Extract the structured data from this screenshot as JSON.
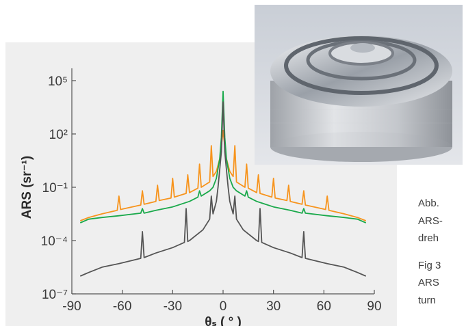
{
  "chart_data": {
    "type": "line",
    "xlabel": "θₛ ( ° )",
    "ylabel": "ARS (sr⁻¹)",
    "xlim": [
      -90,
      90
    ],
    "xticks": [
      -90,
      -60,
      -30,
      0,
      30,
      60,
      90
    ],
    "ylim": [
      1e-07,
      100000
    ],
    "yticks": [
      {
        "value": 1e-07,
        "label": "10⁻⁷"
      },
      {
        "value": 0.0001,
        "label": "10⁻⁴"
      },
      {
        "value": 0.1,
        "label": "10⁻¹"
      },
      {
        "value": 100,
        "label": "10²"
      },
      {
        "value": 100000,
        "label": "10⁵"
      }
    ],
    "log_y": true,
    "series": [
      {
        "color": "#f7941d",
        "x": [
          -85,
          -80,
          -72,
          -63,
          -62,
          -61,
          -49,
          -48,
          -47,
          -40,
          -39,
          -38,
          -31,
          -30,
          -29,
          -22,
          -21,
          -20,
          -15,
          -14,
          -13,
          -8,
          -7,
          -6,
          -4,
          -2,
          -1,
          0,
          1,
          2,
          4,
          6,
          7,
          8,
          13,
          14,
          15,
          20,
          21,
          22,
          29,
          30,
          31,
          38,
          39,
          40,
          47,
          48,
          49,
          61,
          62,
          63,
          72,
          80,
          85
        ],
        "values": [
          0.0013,
          0.002,
          0.0032,
          0.005,
          0.032,
          0.0056,
          0.01,
          0.063,
          0.011,
          0.016,
          0.13,
          0.018,
          0.025,
          0.32,
          0.028,
          0.045,
          0.5,
          0.05,
          0.089,
          2,
          0.1,
          0.2,
          22,
          0.4,
          0.79,
          4,
          20,
          158,
          20,
          4,
          0.79,
          0.4,
          22,
          0.2,
          0.1,
          2,
          0.089,
          0.05,
          0.5,
          0.045,
          0.028,
          0.32,
          0.025,
          0.018,
          0.13,
          0.016,
          0.011,
          0.063,
          0.01,
          0.0056,
          0.032,
          0.005,
          0.0032,
          0.002,
          0.0013
        ]
      },
      {
        "color": "#1aa94b",
        "x": [
          -85,
          -80,
          -72,
          -62,
          -49,
          -48,
          -47,
          -40,
          -30,
          -20,
          -15,
          -14,
          -13,
          -8,
          -6,
          -4,
          -2,
          -1,
          0,
          1,
          2,
          4,
          6,
          8,
          13,
          14,
          15,
          20,
          30,
          40,
          47,
          48,
          49,
          62,
          72,
          80,
          85
        ],
        "values": [
          0.001,
          0.0016,
          0.002,
          0.0025,
          0.0035,
          0.0063,
          0.0035,
          0.005,
          0.0079,
          0.016,
          0.028,
          0.063,
          0.032,
          0.063,
          0.1,
          0.32,
          4,
          63,
          25000,
          63,
          4,
          0.32,
          0.1,
          0.063,
          0.032,
          0.063,
          0.028,
          0.016,
          0.0079,
          0.005,
          0.0035,
          0.0063,
          0.0035,
          0.0025,
          0.002,
          0.0016,
          0.001
        ]
      },
      {
        "color": "#555555",
        "x": [
          -85,
          -80,
          -72,
          -62,
          -49,
          -48,
          -47,
          -40,
          -30,
          -23,
          -22,
          -21,
          -20,
          -12,
          -8,
          -7,
          -6,
          -4,
          -3,
          -2,
          -1,
          0,
          1,
          2,
          3,
          4,
          6,
          7,
          8,
          12,
          20,
          21,
          22,
          23,
          30,
          40,
          47,
          48,
          49,
          62,
          72,
          80,
          85
        ],
        "values": [
          1e-06,
          1.6e-06,
          3.2e-06,
          5e-06,
          1e-05,
          0.00032,
          1.1e-05,
          2e-05,
          4e-05,
          7.9e-05,
          0.0063,
          8.9e-05,
          0.0001,
          0.0004,
          0.0016,
          0.032,
          0.0032,
          0.016,
          0.1,
          1,
          10,
          6300,
          10,
          1,
          0.1,
          0.016,
          0.0032,
          0.032,
          0.0016,
          0.0004,
          0.0001,
          8.9e-05,
          0.0063,
          7.9e-05,
          4e-05,
          2e-05,
          1.1e-05,
          0.00032,
          1e-05,
          5e-06,
          3.2e-06,
          1.6e-06,
          1e-06
        ]
      }
    ]
  },
  "caption": {
    "de": [
      "Abb.",
      "ARS-",
      "dreh"
    ],
    "en": [
      "Fig 3",
      "ARS",
      "turn"
    ]
  }
}
